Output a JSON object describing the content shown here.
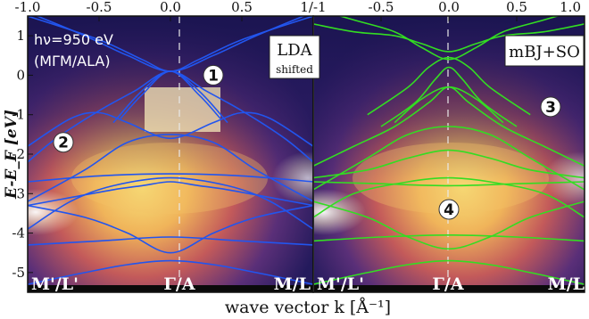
{
  "chart_data": {
    "type": "line",
    "xlabel": "wave vector k [Å⁻¹]",
    "ylabel": "E-E_F [eV]",
    "xlim": [
      -1.0,
      1.0
    ],
    "ylim": [
      -5.5,
      1.5
    ],
    "xticks": [
      "-1.0",
      "-0.5",
      "0.0",
      "0.5",
      "1/-1",
      "-0.5",
      "0.0",
      "0.5",
      "1.0"
    ],
    "yticks": [
      "1",
      "0",
      "-1",
      "-2",
      "-3",
      "-4",
      "-5"
    ],
    "ytick_values": [
      1,
      0,
      -1,
      -2,
      -3,
      -4,
      -5
    ],
    "panels": [
      {
        "box_lines": [
          "LDA",
          "shifted"
        ],
        "info_lines": [
          "hν=950 eV",
          "(MΓM/ALA)"
        ],
        "k_labels": [
          "M'/L'",
          "Γ/A",
          "M/L"
        ],
        "markers": [
          {
            "label": "1",
            "k": 0.3,
            "E": 0.0
          },
          {
            "label": "2",
            "k": -0.75,
            "E": -1.7
          }
        ],
        "band_color": "#2255ee",
        "series": [
          {
            "x": [
              -1,
              -0.6,
              -0.3,
              0,
              0.3,
              0.6,
              1
            ],
            "values": [
              1.6,
              1.0,
              0.5,
              0.1,
              0.5,
              1.0,
              1.6
            ]
          },
          {
            "x": [
              -1,
              -0.5,
              -0.2,
              0,
              0.2,
              0.5,
              1
            ],
            "values": [
              1.5,
              0.9,
              0.4,
              0.1,
              0.4,
              0.9,
              1.5
            ]
          },
          {
            "x": [
              -0.35,
              -0.2,
              0,
              0.2,
              0.35
            ],
            "values": [
              -1.1,
              -0.5,
              0.1,
              -0.5,
              -1.1
            ]
          },
          {
            "x": [
              -0.4,
              -0.2,
              0,
              0.2,
              0.4
            ],
            "values": [
              -1.2,
              -0.4,
              0.1,
              -0.4,
              -1.2
            ]
          },
          {
            "x": [
              -1,
              -0.8,
              -0.5,
              -0.25,
              0,
              0.25,
              0.5,
              0.8,
              1
            ],
            "values": [
              -2.2,
              -1.6,
              -0.9,
              -0.4,
              0.1,
              -0.4,
              -0.9,
              -1.6,
              -2.2
            ]
          },
          {
            "x": [
              -1,
              -0.7,
              -0.5,
              -0.3,
              0,
              0.3,
              0.5,
              0.7,
              1
            ],
            "values": [
              -1.8,
              -1.1,
              -0.95,
              -1.2,
              -1.6,
              -1.2,
              -0.95,
              -1.1,
              -1.8
            ]
          },
          {
            "x": [
              -1,
              -0.6,
              -0.3,
              0,
              0.3,
              0.6,
              1
            ],
            "values": [
              -3.2,
              -2.4,
              -1.7,
              -1.5,
              -1.7,
              -2.4,
              -3.2
            ]
          },
          {
            "x": [
              -1,
              -0.5,
              0,
              0.5,
              1
            ],
            "values": [
              -2.7,
              -2.55,
              -2.5,
              -2.55,
              -2.7
            ]
          },
          {
            "x": [
              -1,
              -0.7,
              -0.4,
              -0.2,
              0,
              0.2,
              0.4,
              0.7,
              1
            ],
            "values": [
              -3.3,
              -3.1,
              -2.9,
              -2.8,
              -2.7,
              -2.8,
              -2.9,
              -3.1,
              -3.3
            ]
          },
          {
            "x": [
              -1,
              -0.7,
              -0.4,
              0,
              0.4,
              0.7,
              1
            ],
            "values": [
              -3.9,
              -3.2,
              -2.8,
              -2.6,
              -2.8,
              -3.2,
              -3.9
            ]
          },
          {
            "x": [
              -1,
              -0.6,
              -0.3,
              0,
              0.3,
              0.6,
              1
            ],
            "values": [
              -3.3,
              -3.6,
              -4.0,
              -4.5,
              -4.0,
              -3.6,
              -3.3
            ]
          },
          {
            "x": [
              -1,
              -0.5,
              0,
              0.5,
              1
            ],
            "values": [
              -4.3,
              -4.2,
              -4.1,
              -4.2,
              -4.3
            ]
          },
          {
            "x": [
              -1,
              -0.6,
              -0.3,
              0,
              0.3,
              0.6,
              1
            ],
            "values": [
              -5.3,
              -5.0,
              -4.8,
              -4.7,
              -4.8,
              -5.0,
              -5.3
            ]
          }
        ]
      },
      {
        "box_lines": [
          "mBJ+SO"
        ],
        "info_lines": [],
        "k_labels": [
          "M'/L'",
          "Γ/A",
          "M/L"
        ],
        "markers": [
          {
            "label": "3",
            "k": 0.75,
            "E": -0.8
          },
          {
            "label": "4",
            "k": 0.0,
            "E": -3.4
          }
        ],
        "band_color": "#33dd22",
        "series": [
          {
            "x": [
              -1,
              -0.7,
              -0.4,
              -0.2,
              0,
              0.2,
              0.4,
              0.7,
              1
            ],
            "values": [
              1.3,
              1.1,
              1.0,
              0.8,
              0.6,
              0.8,
              1.0,
              1.1,
              1.3
            ]
          },
          {
            "x": [
              -1,
              -0.7,
              -0.4,
              -0.2,
              0,
              0.2,
              0.4,
              0.7,
              1
            ],
            "values": [
              1.7,
              1.4,
              1.1,
              0.7,
              0.4,
              0.7,
              1.1,
              1.4,
              1.7
            ]
          },
          {
            "x": [
              -0.6,
              -0.3,
              -0.15,
              0,
              0.15,
              0.3,
              0.6
            ],
            "values": [
              -1.0,
              -0.3,
              0.2,
              0.45,
              0.2,
              -0.3,
              -1.0
            ]
          },
          {
            "x": [
              -0.5,
              -0.25,
              -0.1,
              0,
              0.1,
              0.25,
              0.5
            ],
            "values": [
              -1.3,
              -0.7,
              -0.1,
              0.2,
              -0.1,
              -0.7,
              -1.3
            ]
          },
          {
            "x": [
              -0.4,
              -0.2,
              0,
              0.2,
              0.4
            ],
            "values": [
              -1.2,
              -0.6,
              -0.3,
              -0.6,
              -1.2
            ]
          },
          {
            "x": [
              -1,
              -0.7,
              -0.4,
              -0.15,
              0,
              0.15,
              0.4,
              0.7,
              1
            ],
            "values": [
              -2.3,
              -1.8,
              -1.3,
              -0.7,
              -0.3,
              -0.7,
              -1.3,
              -1.8,
              -2.3
            ]
          },
          {
            "x": [
              -1,
              -0.6,
              -0.3,
              0,
              0.3,
              0.6,
              1
            ],
            "values": [
              -2.9,
              -2.1,
              -1.5,
              -1.3,
              -1.5,
              -2.1,
              -2.9
            ]
          },
          {
            "x": [
              -1,
              -0.6,
              -0.3,
              0,
              0.3,
              0.6,
              1
            ],
            "values": [
              -2.6,
              -2.4,
              -2.1,
              -1.9,
              -2.1,
              -2.4,
              -2.6
            ]
          },
          {
            "x": [
              -1,
              -0.5,
              0,
              0.5,
              1
            ],
            "values": [
              -2.7,
              -2.75,
              -2.8,
              -2.75,
              -2.7
            ]
          },
          {
            "x": [
              -1,
              -0.7,
              -0.3,
              0,
              0.3,
              0.7,
              1
            ],
            "values": [
              -3.6,
              -3.0,
              -2.7,
              -2.6,
              -2.7,
              -3.0,
              -3.6
            ]
          },
          {
            "x": [
              -1,
              -0.6,
              -0.3,
              0,
              0.3,
              0.6,
              1
            ],
            "values": [
              -3.2,
              -3.6,
              -4.1,
              -4.4,
              -4.1,
              -3.6,
              -3.2
            ]
          },
          {
            "x": [
              -1,
              -0.5,
              0,
              0.5,
              1
            ],
            "values": [
              -4.2,
              -4.1,
              -4.05,
              -4.1,
              -4.2
            ]
          },
          {
            "x": [
              -1,
              -0.6,
              -0.3,
              0,
              0.3,
              0.6,
              1
            ],
            "values": [
              -5.3,
              -5.0,
              -4.8,
              -4.7,
              -4.8,
              -5.0,
              -5.3
            ]
          }
        ]
      }
    ]
  }
}
